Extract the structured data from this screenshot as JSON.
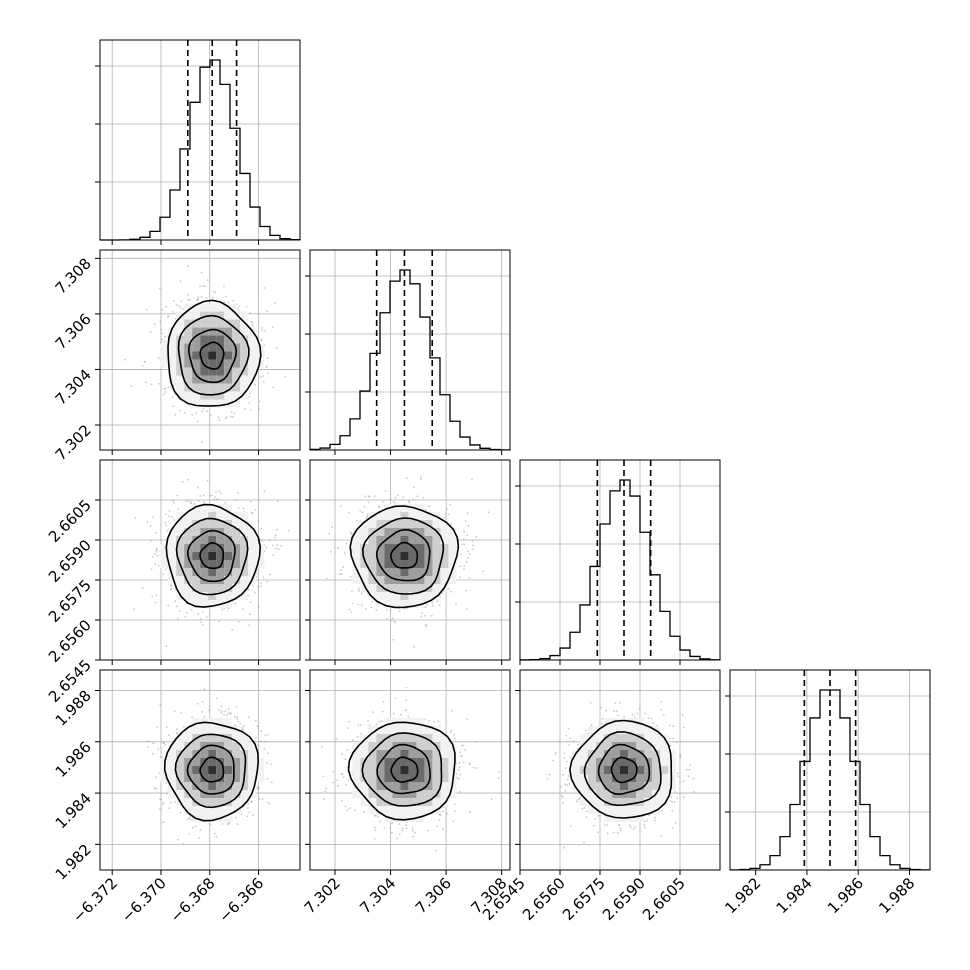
{
  "chart_data": {
    "type": "corner",
    "parameters": [
      {
        "mean": -6.3679,
        "std": 0.00095,
        "range": [
          -6.3725,
          -6.3643
        ],
        "ticks": [
          -6.372,
          -6.37,
          -6.368,
          -6.366
        ],
        "tick_labels": [
          "−6.372",
          "−6.370",
          "−6.368",
          "−6.366"
        ],
        "quantiles": [
          -6.3689,
          -6.3679,
          -6.3669
        ]
      },
      {
        "mean": 7.3045,
        "std": 0.00095,
        "range": [
          7.3011,
          7.3083
        ],
        "ticks": [
          7.302,
          7.304,
          7.306,
          7.308
        ],
        "tick_labels": [
          "7.302",
          "7.304",
          "7.306",
          "7.308"
        ],
        "quantiles": [
          7.3035,
          7.3045,
          7.3055
        ]
      },
      {
        "mean": 2.6584,
        "std": 0.00095,
        "range": [
          2.6545,
          2.662
        ],
        "ticks": [
          2.6545,
          2.656,
          2.6575,
          2.659,
          2.6605
        ],
        "tick_labels": [
          "2.6545",
          "2.6560",
          "2.6575",
          "2.6590",
          "2.6605"
        ],
        "quantiles": [
          2.6574,
          2.6584,
          2.6594
        ]
      },
      {
        "mean": 1.9849,
        "std": 0.00095,
        "range": [
          1.981,
          1.9888
        ],
        "ticks": [
          1.982,
          1.984,
          1.986,
          1.988
        ],
        "tick_labels": [
          "1.982",
          "1.984",
          "1.986",
          "1.988"
        ],
        "quantiles": [
          1.9839,
          1.9849,
          1.9859
        ]
      }
    ],
    "histogram_bins": 20,
    "grid": true,
    "title": "",
    "colors": {
      "points": "#9a9a9a",
      "contour": "#000000",
      "grid": "#b0b0b0"
    }
  }
}
